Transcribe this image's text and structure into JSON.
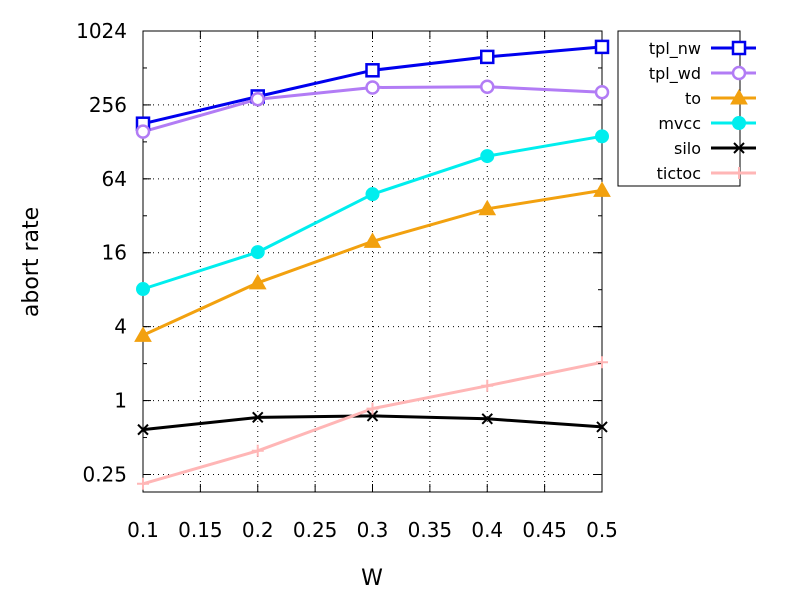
{
  "chart_data": {
    "type": "line",
    "xlabel": "W",
    "ylabel": "abort rate",
    "x": [
      0.1,
      0.2,
      0.3,
      0.4,
      0.5
    ],
    "xlim": [
      0.1,
      0.5
    ],
    "x_ticks": [
      "0.1",
      "0.15",
      "0.2",
      "0.25",
      "0.3",
      "0.35",
      "0.4",
      "0.45",
      "0.5"
    ],
    "y_scale": "log2",
    "ylim": [
      0.18,
      1024
    ],
    "y_ticks": [
      {
        "value": 0.25,
        "label": "0.25"
      },
      {
        "value": 1,
        "label": "1"
      },
      {
        "value": 4,
        "label": "4"
      },
      {
        "value": 16,
        "label": "16"
      },
      {
        "value": 64,
        "label": "64"
      },
      {
        "value": 256,
        "label": "256"
      },
      {
        "value": 1024,
        "label": "1024"
      }
    ],
    "grid": "dotted",
    "legend_position": "outside-right-top",
    "series": [
      {
        "name": "tpl_nw",
        "values": [
          180,
          300,
          490,
          630,
          760
        ],
        "color": "#0000ee",
        "marker": "square-open"
      },
      {
        "name": "tpl_wd",
        "values": [
          155,
          285,
          355,
          360,
          325
        ],
        "color": "#b27cf5",
        "marker": "circle-open"
      },
      {
        "name": "to",
        "values": [
          3.4,
          9.1,
          19.8,
          36.5,
          51.5
        ],
        "color": "#f2a10f",
        "marker": "triangle-filled"
      },
      {
        "name": "mvcc",
        "values": [
          8.1,
          16.2,
          48,
          98,
          142
        ],
        "color": "#00eeee",
        "marker": "circle-filled"
      },
      {
        "name": "silo",
        "values": [
          0.58,
          0.73,
          0.75,
          0.71,
          0.61
        ],
        "color": "#000000",
        "marker": "x"
      },
      {
        "name": "tictoc",
        "values": [
          0.21,
          0.39,
          0.86,
          1.32,
          2.05
        ],
        "color": "#ffb6b6",
        "marker": "plus"
      }
    ]
  }
}
